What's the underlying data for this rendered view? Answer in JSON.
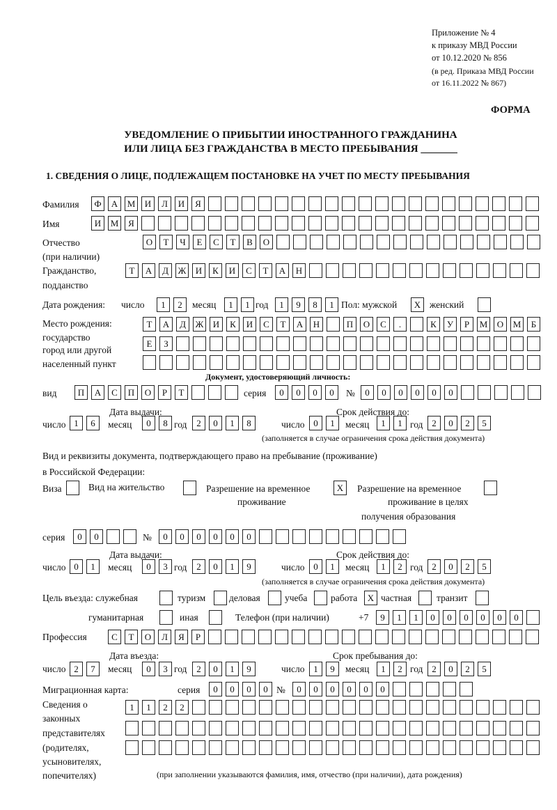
{
  "header": {
    "annex": "Приложение № 4",
    "order": "к приказу МВД России",
    "date": "от 10.12.2020 № 856",
    "revision1": "(в ред. Приказа МВД России",
    "revision2": "от 16.11.2022 № 867)",
    "form": "ФОРМА",
    "title1": "УВЕДОМЛЕНИЕ О ПРИБЫТИИ ИНОСТРАННОГО ГРАЖДАНИНА",
    "title2": "ИЛИ ЛИЦА БЕЗ ГРАЖДАНСТВА В МЕСТО ПРЕБЫВАНИЯ _______",
    "section1": "1. СВЕДЕНИЯ О ЛИЦЕ, ПОДЛЕЖАЩЕМ ПОСТАНОВКЕ НА УЧЕТ ПО МЕСТУ ПРЕБЫВАНИЯ"
  },
  "labels": {
    "surname": "Фамилия",
    "name": "Имя",
    "patronymic1": "Отчество",
    "patronymic2": "(при наличии)",
    "citizenship1": "Гражданство,",
    "citizenship2": "подданство",
    "birth_date": "Дата рождения:",
    "day": "число",
    "month": "месяц",
    "year": "год",
    "sex": "Пол: мужской",
    "female": "женский",
    "birthplace1": "Место рождения:",
    "birthplace2": "государство",
    "birthplace3": "город или другой",
    "birthplace4": "населенный пункт",
    "id_doc": "Документ, удостоверяющий личность:",
    "kind": "вид",
    "series": "серия",
    "number": "№",
    "issue_date": "Дата выдачи:",
    "valid_until": "Срок действия до:",
    "validity_note": "(заполняется в случае ограничения срока действия документа)",
    "right_doc1": "Вид и реквизиты документа, подтверждающего право на пребывание (проживание)",
    "right_doc2": "в Российской Федерации:",
    "visa": "Виза",
    "residence": "Вид на жительство",
    "trp1": "Разрешение на временное",
    "trp2": "проживание",
    "trpe1": "Разрешение на временное",
    "trpe2": "проживание в целях",
    "trpe3": "получения образования",
    "purpose": "Цель въезда: служебная",
    "tourism": "туризм",
    "business": "деловая",
    "study": "учеба",
    "work": "работа",
    "private": "частная",
    "transit": "транзит",
    "humanitarian": "гуманитарная",
    "other": "иная",
    "phone": "Телефон (при наличии)",
    "phone_prefix": "+7",
    "profession": "Профессия",
    "entry_date": "Дата въезда:",
    "stay_until": "Срок пребывания до:",
    "migration_card": "Миграционная карта:",
    "reps1": "Сведения о",
    "reps2": "законных",
    "reps3": "представителях",
    "reps4": "(родителях,",
    "reps5": "усыновителях,",
    "reps6": "попечителях)",
    "reps_note": "(при заполнении указываются фамилия, имя, отчество (при наличии), дата рождения)"
  },
  "fields": {
    "surname": "ФАМИЛИЯ",
    "name": "ИМЯ",
    "patronymic": "ОТЧЕСТВО",
    "citizenship": "ТАДЖИКИСТАН",
    "birth_day": "12",
    "birth_month": "11",
    "birth_year": "1981",
    "sex_male": "X",
    "sex_female": "",
    "birthplace_1": "ТАДЖИКИСТАН ПОС. КУРМОМБ",
    "birthplace_2": "ЕЗ",
    "birthplace_3": "",
    "doc_kind": "ПАСПОРТ",
    "doc_series": "0000",
    "doc_number": "000000",
    "doc_issue_day": "16",
    "doc_issue_month": "08",
    "doc_issue_year": "2018",
    "doc_valid_day": "01",
    "doc_valid_month": "11",
    "doc_valid_year": "2025",
    "visa": "",
    "residence_permit": "",
    "trp": "X",
    "trp_education": "",
    "right_series": "00",
    "right_number": "000000",
    "right_issue_day": "01",
    "right_issue_month": "03",
    "right_issue_year": "2019",
    "right_valid_day": "01",
    "right_valid_month": "12",
    "right_valid_year": "2025",
    "purpose_official": "",
    "purpose_tourism": "",
    "purpose_business": "",
    "purpose_study": "",
    "purpose_work": "X",
    "purpose_private": "",
    "purpose_transit": "",
    "purpose_humanitarian": "",
    "purpose_other": "",
    "phone": "911000000",
    "profession": "СТОЛЯР",
    "entry_day": "27",
    "entry_month": "03",
    "entry_year": "2019",
    "stay_day": "19",
    "stay_month": "12",
    "stay_year": "2025",
    "mc_series": "0000",
    "mc_number": "000000",
    "reps_1": "1122",
    "reps_2": "",
    "reps_3": ""
  }
}
